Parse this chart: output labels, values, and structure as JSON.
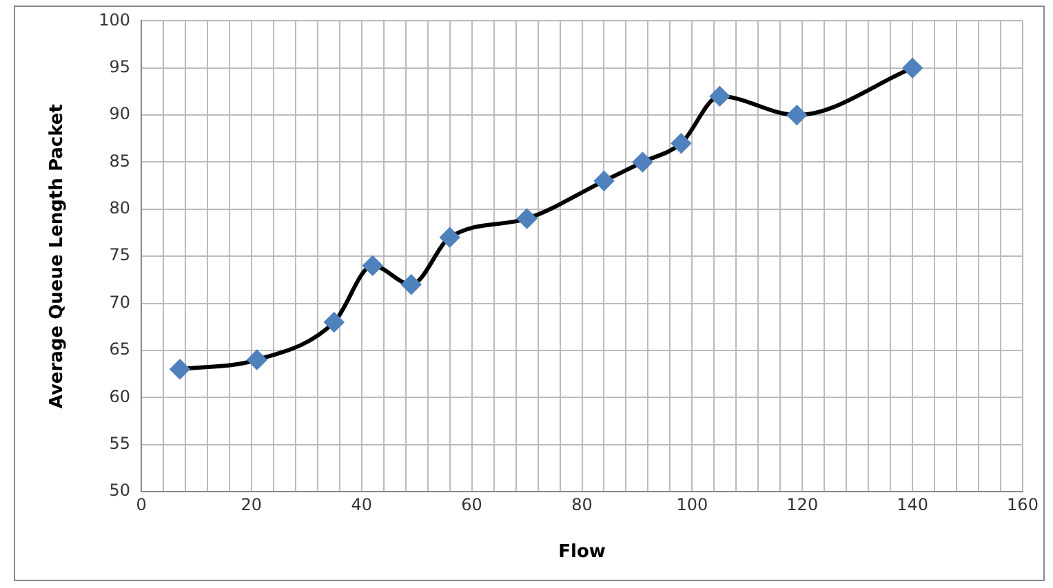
{
  "chart_data": {
    "type": "line",
    "xlabel": "Flow",
    "ylabel": "Average Queue Length Packet",
    "x": [
      7,
      21,
      35,
      42,
      49,
      56,
      70,
      84,
      91,
      98,
      105,
      119,
      140
    ],
    "series": [
      {
        "color": "#4f81bd",
        "values": [
          63,
          64,
          68,
          74,
          72,
          77,
          79,
          83,
          85,
          87,
          92,
          90,
          95
        ]
      }
    ],
    "xlim": [
      0,
      160
    ],
    "xticks": [
      0,
      {
        "value": 4,
        "label": null
      },
      {
        "value": 8,
        "label": null
      },
      {
        "value": 12,
        "label": null
      },
      {
        "value": 16,
        "label": null
      },
      20,
      {
        "value": 24,
        "label": null
      },
      {
        "value": 28,
        "label": null
      },
      {
        "value": 32,
        "label": null
      },
      {
        "value": 36,
        "label": null
      },
      40,
      {
        "value": 44,
        "label": null
      },
      {
        "value": 48,
        "label": null
      },
      {
        "value": 52,
        "label": null
      },
      {
        "value": 56,
        "label": null
      },
      60,
      {
        "value": 64,
        "label": null
      },
      {
        "value": 68,
        "label": null
      },
      {
        "value": 72,
        "label": null
      },
      {
        "value": 76,
        "label": null
      },
      80,
      {
        "value": 84,
        "label": null
      },
      {
        "value": 88,
        "label": null
      },
      {
        "value": 92,
        "label": null
      },
      {
        "value": 96,
        "label": null
      },
      100,
      {
        "value": 104,
        "label": null
      },
      {
        "value": 108,
        "label": null
      },
      {
        "value": 112,
        "label": null
      },
      {
        "value": 116,
        "label": null
      },
      120,
      {
        "value": 124,
        "label": null
      },
      {
        "value": 128,
        "label": null
      },
      {
        "value": 132,
        "label": null
      },
      {
        "value": 136,
        "label": null
      },
      140,
      {
        "value": 144,
        "label": null
      },
      {
        "value": 148,
        "label": null
      },
      {
        "value": 152,
        "label": null
      },
      {
        "value": 156,
        "label": null
      },
      160
    ],
    "ylim": [
      50,
      100
    ],
    "yticks": [
      50,
      55,
      60,
      65,
      70,
      75,
      80,
      85,
      90,
      95,
      100
    ],
    "grid": true,
    "legend": false,
    "marker": "diamond",
    "line_style": "solid"
  }
}
